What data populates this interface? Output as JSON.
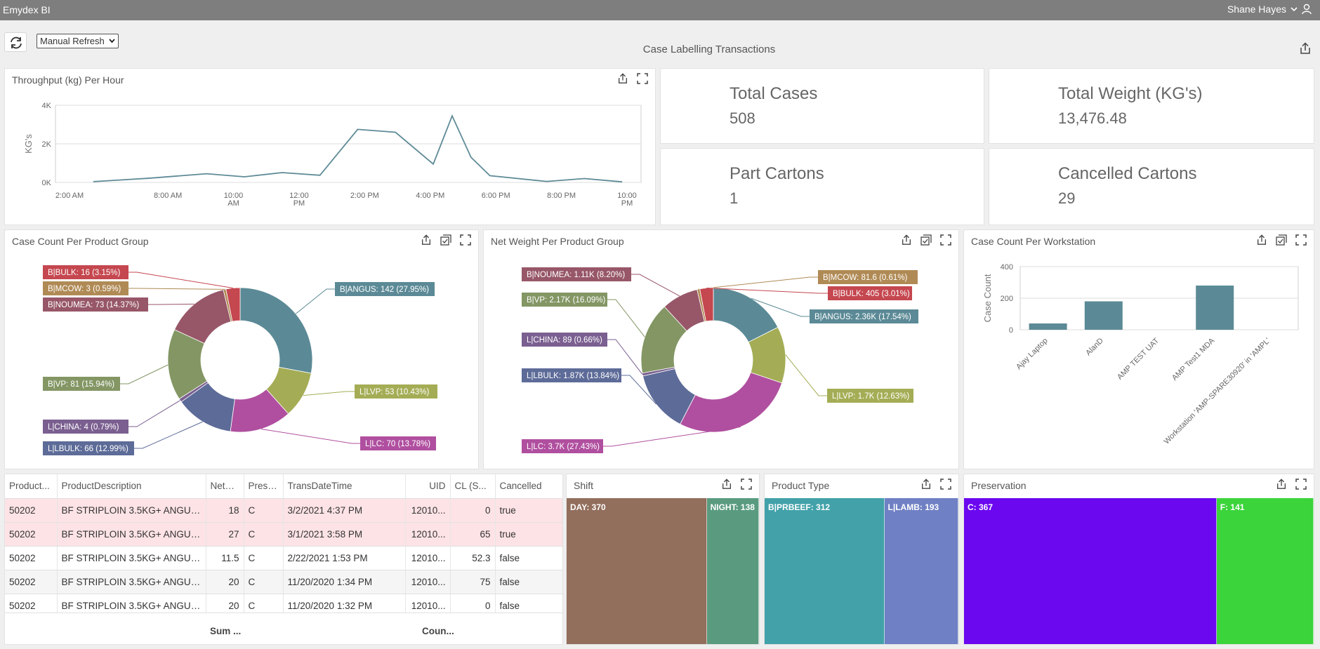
{
  "app": {
    "title": "Emydex BI",
    "user": "Shane Hayes"
  },
  "toolbar": {
    "refresh_mode": "Manual Refresh",
    "dashboard_title": "Case Labelling Transactions"
  },
  "throughput": {
    "title": "Throughput (kg) Per Hour",
    "chart_data": {
      "type": "line",
      "ylabel": "KG's",
      "yticks": [
        "4K",
        "2K",
        "0K"
      ],
      "ylim": [
        0,
        4000
      ],
      "xticks": [
        "2:00 AM",
        "8:00 AM",
        "10:00 AM",
        "12:00 PM",
        "2:00 PM",
        "4:00 PM",
        "6:00 PM",
        "8:00 PM",
        "10:00 PM"
      ],
      "x": [
        2,
        5,
        8,
        10,
        12,
        14,
        16,
        18,
        20,
        21,
        22,
        23,
        26,
        28,
        30
      ],
      "values": [
        40,
        220,
        450,
        290,
        510,
        370,
        2750,
        2600,
        950,
        3450,
        1300,
        350,
        50,
        200,
        30
      ],
      "color": "#5f8b97"
    }
  },
  "kpis": [
    {
      "label": "Total Cases",
      "value": "508"
    },
    {
      "label": "Total Weight (KG's)",
      "value": "13,476.48"
    },
    {
      "label": "Part Cartons",
      "value": "1"
    },
    {
      "label": "Cancelled Cartons",
      "value": "29"
    }
  ],
  "case_count_group": {
    "title": "Case Count Per Product Group",
    "chart_data": {
      "type": "pie",
      "labels": [
        "B|ANGUS: 142 (27.95%)",
        "L|LVP: 53 (10.43%)",
        "L|LC: 70 (13.78%)",
        "L|LBULK: 66 (12.99%)",
        "L|CHINA: 4 (0.79%)",
        "B|VP: 81 (15.94%)",
        "B|NOUMEA: 73 (14.37%)",
        "B|MCOW: 3 (0.59%)",
        "B|BULK: 16 (3.15%)"
      ],
      "values": [
        142,
        53,
        70,
        66,
        4,
        81,
        73,
        3,
        16
      ],
      "colors": [
        "#5b8a96",
        "#a4ad55",
        "#b04f9f",
        "#5d6b98",
        "#7a5f90",
        "#839664",
        "#975768",
        "#b08a55",
        "#c5474f"
      ]
    }
  },
  "net_weight_group": {
    "title": "Net Weight Per Product Group",
    "chart_data": {
      "type": "pie",
      "labels": [
        "B|ANGUS: 2.36K (17.54%)",
        "L|LVP: 1.7K (12.63%)",
        "L|LC: 3.7K (27.43%)",
        "L|LBULK: 1.87K (13.84%)",
        "L|CHINA: 89 (0.66%)",
        "B|VP: 2.17K (16.09%)",
        "B|NOUMEA: 1.11K (8.20%)",
        "B|MCOW: 81.6 (0.61%)",
        "B|BULK: 405 (3.01%)"
      ],
      "values": [
        17.54,
        12.63,
        27.43,
        13.84,
        0.66,
        16.09,
        8.2,
        0.61,
        3.01
      ],
      "colors": [
        "#5b8a96",
        "#a4ad55",
        "#b04f9f",
        "#5d6b98",
        "#7a5f90",
        "#839664",
        "#975768",
        "#b08a55",
        "#c5474f"
      ]
    }
  },
  "workstation": {
    "title": "Case Count Per Workstation",
    "chart_data": {
      "type": "bar",
      "ylabel": "Case Count",
      "yticks": [
        "400",
        "200",
        "0"
      ],
      "ylim": [
        0,
        400
      ],
      "categories": [
        "Ajay Laptop",
        "AlanD",
        "AMP TEST UAT",
        "AMP Test1 MDA",
        "Workstation 'AMP-SPARE30920' in 'AMPL'"
      ],
      "values": [
        40,
        180,
        0,
        280,
        0
      ],
      "color": "#5b8a96"
    }
  },
  "grid": {
    "columns": [
      "Product...",
      "ProductDescription",
      "NetW...",
      "Prese...",
      "TransDateTime",
      "UID",
      "CL (S...",
      "Cancelled"
    ],
    "rows": [
      {
        "code": "50202",
        "desc": "BF STRIPLOIN 3.5KG+ ANGUS...",
        "net": "18",
        "pres": "C",
        "dt": "3/2/2021 4:37 PM",
        "uid": "12010...",
        "cl": "0",
        "cancelled": "true"
      },
      {
        "code": "50202",
        "desc": "BF STRIPLOIN 3.5KG+ ANGUS...",
        "net": "27",
        "pres": "C",
        "dt": "3/1/2021 3:58 PM",
        "uid": "12010...",
        "cl": "65",
        "cancelled": "true"
      },
      {
        "code": "50202",
        "desc": "BF STRIPLOIN 3.5KG+ ANGUS...",
        "net": "11.5",
        "pres": "C",
        "dt": "2/22/2021 1:53 PM",
        "uid": "12010...",
        "cl": "52.3",
        "cancelled": "false"
      },
      {
        "code": "50202",
        "desc": "BF STRIPLOIN 3.5KG+ ANGUS...",
        "net": "20",
        "pres": "C",
        "dt": "11/20/2020 1:34 PM",
        "uid": "12010...",
        "cl": "75",
        "cancelled": "false"
      },
      {
        "code": "50202",
        "desc": "BF STRIPLOIN 3.5KG+ ANGUS...",
        "net": "20",
        "pres": "C",
        "dt": "11/20/2020 1:32 PM",
        "uid": "12010...",
        "cl": "0",
        "cancelled": "false"
      }
    ],
    "footer": {
      "sum": "Sum ...",
      "count": "Coun..."
    }
  },
  "shift": {
    "title": "Shift",
    "items": [
      {
        "label": "DAY: 370",
        "value": 370,
        "color": "#926e5c"
      },
      {
        "label": "NIGHT: 138",
        "value": 138,
        "color": "#5a9b80"
      }
    ]
  },
  "product_type": {
    "title": "Product Type",
    "items": [
      {
        "label": "B|PRBEEF: 312",
        "value": 312,
        "color": "#42a1a9"
      },
      {
        "label": "L|LAMB: 193",
        "value": 193,
        "color": "#6f80c4"
      }
    ]
  },
  "preservation": {
    "title": "Preservation",
    "items": [
      {
        "label": "C: 367",
        "value": 367,
        "color": "#6b08ef"
      },
      {
        "label": "F: 141",
        "value": 141,
        "color": "#3bd43b"
      }
    ]
  }
}
